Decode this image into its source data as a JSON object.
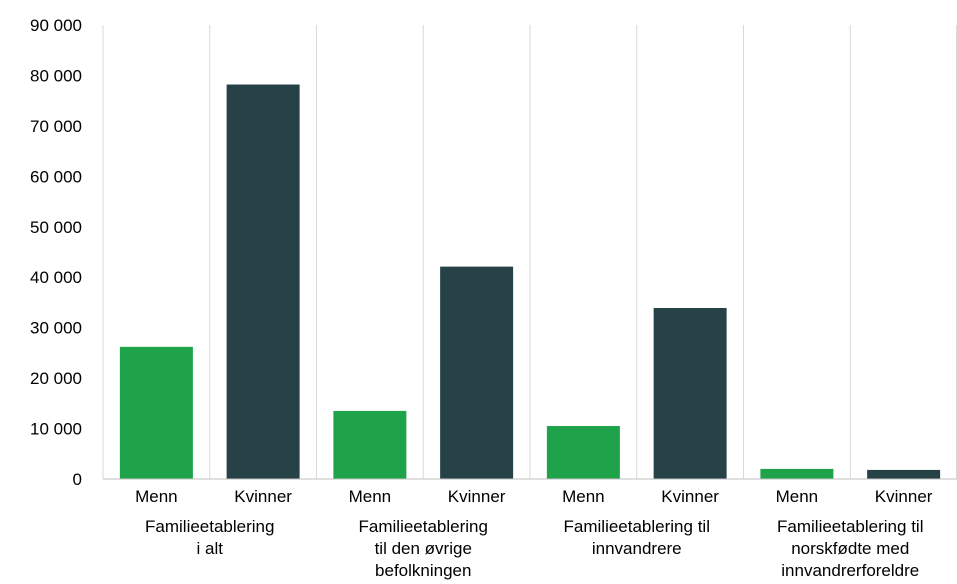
{
  "chart_data": {
    "type": "bar",
    "groups": [
      {
        "label_lines": [
          "Familieetablering",
          "i alt"
        ],
        "categories": [
          "Menn",
          "Kvinner"
        ],
        "values": [
          26200,
          78200
        ]
      },
      {
        "label_lines": [
          "Familieetablering",
          "til den øvrige",
          "befolkningen"
        ],
        "categories": [
          "Menn",
          "Kvinner"
        ],
        "values": [
          13500,
          42100
        ]
      },
      {
        "label_lines": [
          "Familieetablering til",
          "innvandrere"
        ],
        "categories": [
          "Menn",
          "Kvinner"
        ],
        "values": [
          10500,
          33900
        ]
      },
      {
        "label_lines": [
          "Familieetablering til",
          "norskfødte med",
          "innvandrerforeldre"
        ],
        "categories": [
          "Menn",
          "Kvinner"
        ],
        "values": [
          2000,
          1800
        ]
      }
    ],
    "ylim": [
      0,
      90000
    ],
    "yticks": [
      "0",
      "10 000",
      "20 000",
      "30 000",
      "40 000",
      "50 000",
      "60 000",
      "70 000",
      "80 000",
      "90 000"
    ],
    "colors": {
      "Menn": "#1fa34a",
      "Kvinner": "#274247"
    },
    "grid": "vertical separators between bars",
    "legend": "none"
  }
}
